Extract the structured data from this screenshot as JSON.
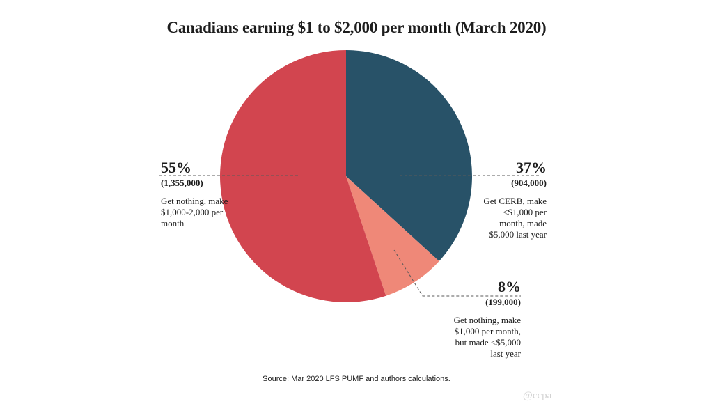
{
  "chart_data": {
    "type": "pie",
    "title": "Canadians earning $1 to $2,000 per month (March 2020)",
    "slices": [
      {
        "key": "cerb",
        "percent_label": "37%",
        "count_label": "(904,000)",
        "description": "Get CERB, make <$1,000 per month, made $5,000 last year",
        "value": 904000,
        "color": "#285268"
      },
      {
        "key": "small",
        "percent_label": "8%",
        "count_label": "(199,000)",
        "description": "Get nothing, make $1,000 per month, but made <$5,000 last year",
        "value": 199000,
        "color": "#ef8878"
      },
      {
        "key": "nothing",
        "percent_label": "55%",
        "count_label": "(1,355,000)",
        "description": "Get nothing, make $1,000-2,000 per month",
        "value": 1355000,
        "color": "#d2454f"
      }
    ]
  },
  "source": "Source: Mar 2020 LFS PUMF and authors calculations.",
  "watermark": "@ccpa"
}
